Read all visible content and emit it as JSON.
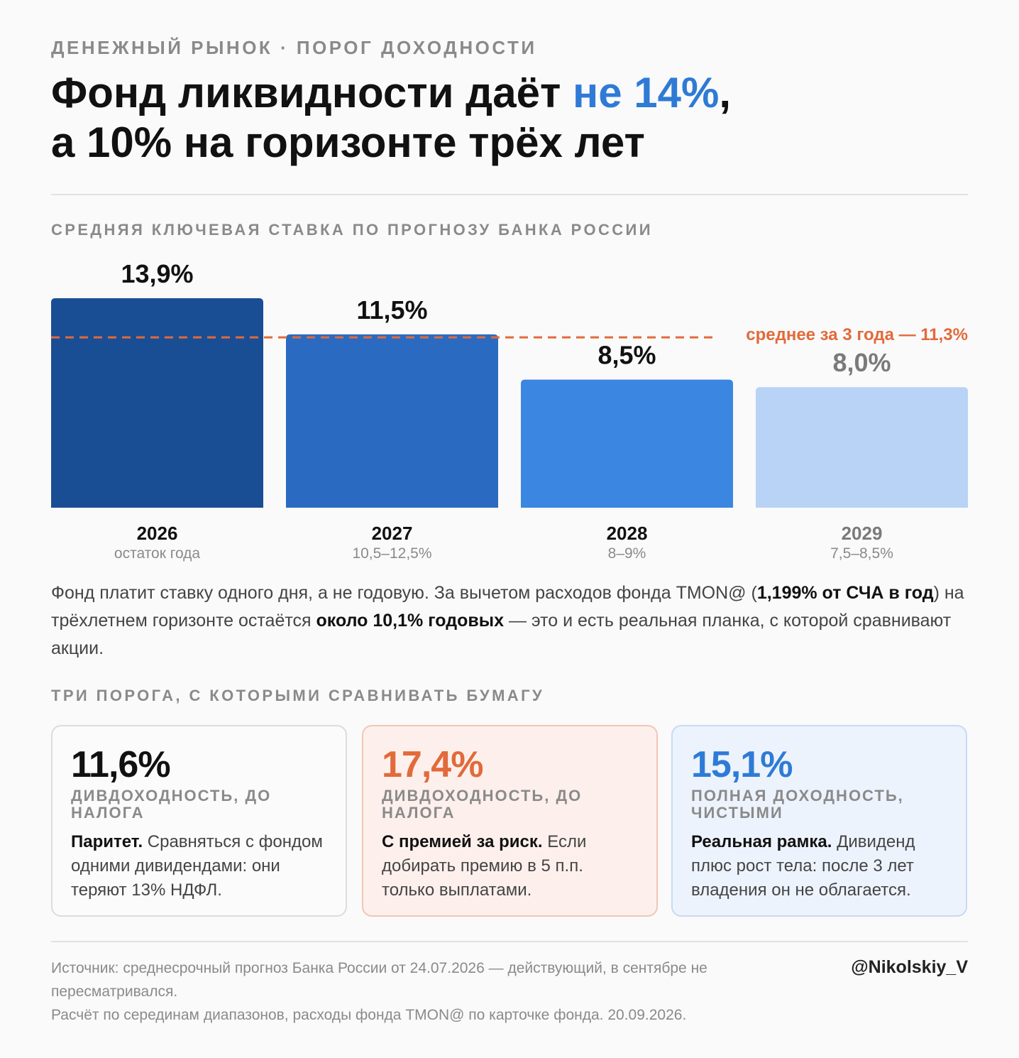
{
  "header": {
    "kicker": "ДЕНЕЖНЫЙ РЫНОК · ПОРОГ ДОХОДНОСТИ",
    "title_part1": "Фонд ликвидности даёт ",
    "title_accent": "не 14%",
    "title_part2": ",",
    "title_line2": "а 10% на горизонте трёх лет"
  },
  "chart_section_label": "СРЕДНЯЯ КЛЮЧЕВАЯ СТАВКА ПО ПРОГНОЗУ БАНКА РОССИИ",
  "chart_data": {
    "type": "bar",
    "categories": [
      "2026",
      "2027",
      "2028",
      "2029"
    ],
    "category_sublabels": [
      "остаток года",
      "10,5–12,5%",
      "8–9%",
      "7,5–8,5%"
    ],
    "values": [
      13.9,
      11.5,
      8.5,
      8.0
    ],
    "value_labels": [
      "13,9%",
      "11,5%",
      "8,5%",
      "8,0%"
    ],
    "bar_colors": [
      "#1a4e94",
      "#2a6ac1",
      "#3a86e1",
      "#b8d3f5"
    ],
    "value_label_colors": [
      "#111111",
      "#111111",
      "#111111",
      "#7a7a7a"
    ],
    "year_label_colors": [
      "#111111",
      "#111111",
      "#111111",
      "#7a7a7a"
    ],
    "reference_line": {
      "value": 11.3,
      "label": "среднее за 3 года — 11,3%",
      "color": "#e26a3b"
    },
    "ylim": [
      0,
      13.9
    ],
    "grid": false
  },
  "explanation": {
    "p1": "Фонд платит ставку одного дня, а не годовую. За вычетом расходов фонда TMON@ (",
    "b1": "1,199% от СЧА в год",
    "p2": ") на трёхлетнем горизонте остаётся ",
    "b2": "около 10,1% годовых",
    "p3": " — это и есть реальная планка, с которой сравнивают акции."
  },
  "thresholds_label": "ТРИ ПОРОГА, С КОТОРЫМИ СРАВНИВАТЬ БУМАГУ",
  "cards": [
    {
      "value": "11,6%",
      "value_color": "#111111",
      "label": "ДИВДОХОДНОСТЬ, ДО НАЛОГА",
      "lead": "Паритет.",
      "text": " Сравняться с фондом одними дивидендами: они теряют 13% НДФЛ."
    },
    {
      "value": "17,4%",
      "value_color": "#e26a3b",
      "label": "ДИВДОХОДНОСТЬ, ДО НАЛОГА",
      "lead": "С премией за риск.",
      "text": " Если добирать премию в 5 п.п. только выплатами."
    },
    {
      "value": "15,1%",
      "value_color": "#2e7bd6",
      "label": "ПОЛНАЯ ДОХОДНОСТЬ, ЧИСТЫМИ",
      "lead": "Реальная рамка.",
      "text": " Дивиденд плюс рост тела: после 3 лет владения он не облагается."
    }
  ],
  "footer": {
    "source": "Источник: среднесрочный прогноз Банка России от 24.07.2026 — действующий, в сентябре не пересматривался.",
    "method": "Расчёт по серединам диапазонов, расходы фонда TMON@ по карточке фонда. 20.09.2026.",
    "handle": "@Nikolskiy_V"
  }
}
